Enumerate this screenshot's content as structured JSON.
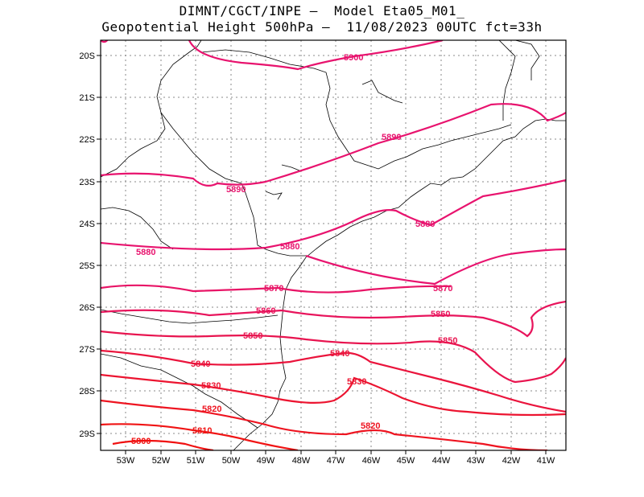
{
  "header": {
    "line1": "DIMNT/CGCT/INPE —  Model Eta05_M01_",
    "line2": "Geopotential Height 500hPa —  11/08/2023 00UTC fct=33h"
  },
  "map": {
    "lon_labels": [
      "53W",
      "52W",
      "51W",
      "50W",
      "49W",
      "48W",
      "47W",
      "46W",
      "45W",
      "44W",
      "43W",
      "42W",
      "41W"
    ],
    "lat_labels": [
      "20S",
      "21S",
      "22S",
      "23S",
      "24S",
      "25S",
      "26S",
      "27S",
      "28S",
      "29S"
    ],
    "contour_labels": [
      {
        "text": "5900",
        "color": "#e8136e"
      },
      {
        "text": "5890",
        "color": "#e8136e"
      },
      {
        "text": "5890",
        "color": "#e8136e"
      },
      {
        "text": "5880",
        "color": "#e8136e"
      },
      {
        "text": "5880",
        "color": "#e8136e"
      },
      {
        "text": "5880",
        "color": "#e8136e"
      },
      {
        "text": "5870",
        "color": "#e81466"
      },
      {
        "text": "5870",
        "color": "#e81466"
      },
      {
        "text": "5860",
        "color": "#e8145c"
      },
      {
        "text": "5860",
        "color": "#e8145c"
      },
      {
        "text": "5850",
        "color": "#e8144f"
      },
      {
        "text": "5850",
        "color": "#e8144f"
      },
      {
        "text": "5840",
        "color": "#ea143c"
      },
      {
        "text": "5840",
        "color": "#ea143c"
      },
      {
        "text": "5830",
        "color": "#ec1430"
      },
      {
        "text": "5830",
        "color": "#ec1430"
      },
      {
        "text": "5820",
        "color": "#ee1420"
      },
      {
        "text": "5820",
        "color": "#ee1420"
      },
      {
        "text": "5810",
        "color": "#f01414"
      },
      {
        "text": "5800",
        "color": "#f01010"
      }
    ],
    "colors": {
      "frame": "#000000",
      "grid": "#888888",
      "coast": "#000000"
    }
  }
}
